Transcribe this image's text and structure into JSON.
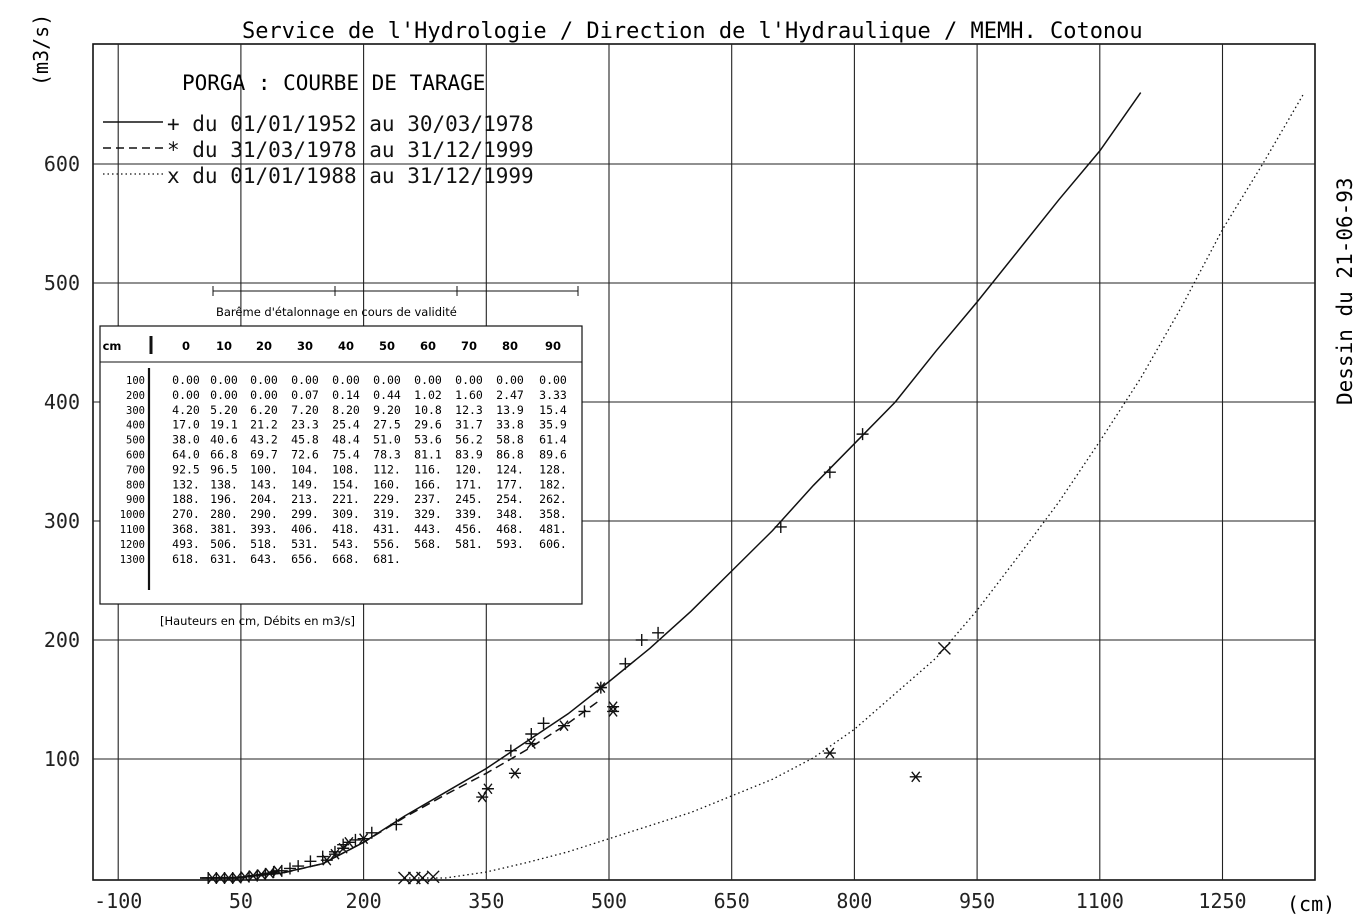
{
  "header": "Service de l'Hydrologie / Direction de l'Hydraulique / MEMH. Cotonou",
  "side_label": "Dessin du 21-06-93",
  "y_unit": "(m3/s)",
  "x_unit": "(cm)",
  "chart_data": {
    "type": "line",
    "title": "PORGA : COURBE DE TARAGE",
    "xlabel": "(cm)",
    "ylabel": "(m3/s)",
    "xlim": [
      -100,
      1400
    ],
    "ylim": [
      0,
      670
    ],
    "grid": true,
    "legend_position": "top-left",
    "x_ticks": [
      "-100",
      "50",
      "200",
      "350",
      "500",
      "650",
      "800",
      "950",
      "1100",
      "1250"
    ],
    "y_ticks": [
      "100",
      "200",
      "300",
      "400",
      "500",
      "600"
    ],
    "series": [
      {
        "name": "+ du 01/01/1952 au 30/03/1978",
        "style": "solid",
        "marker": "+",
        "line": [
          [
            0,
            0
          ],
          [
            50,
            0.5
          ],
          [
            100,
            4.2
          ],
          [
            150,
            12
          ],
          [
            200,
            30
          ],
          [
            250,
            52
          ],
          [
            300,
            72
          ],
          [
            350,
            92
          ],
          [
            400,
            115
          ],
          [
            450,
            138
          ],
          [
            500,
            165
          ],
          [
            550,
            193
          ],
          [
            600,
            224
          ],
          [
            650,
            258
          ],
          [
            700,
            292
          ],
          [
            750,
            330
          ],
          [
            800,
            365
          ],
          [
            850,
            400
          ],
          [
            900,
            443
          ],
          [
            950,
            484
          ],
          [
            1000,
            527
          ],
          [
            1050,
            570
          ],
          [
            1100,
            611
          ],
          [
            1150,
            660
          ]
        ],
        "points": [
          [
            10,
            0
          ],
          [
            20,
            0
          ],
          [
            30,
            0
          ],
          [
            40,
            0
          ],
          [
            50,
            0.5
          ],
          [
            60,
            1.2
          ],
          [
            70,
            2
          ],
          [
            80,
            3.5
          ],
          [
            90,
            5
          ],
          [
            100,
            6
          ],
          [
            110,
            8
          ],
          [
            120,
            10
          ],
          [
            135,
            14
          ],
          [
            150,
            18
          ],
          [
            165,
            22
          ],
          [
            175,
            28
          ],
          [
            190,
            32
          ],
          [
            210,
            38
          ],
          [
            240,
            45
          ],
          [
            380,
            107
          ],
          [
            405,
            121
          ],
          [
            420,
            130
          ],
          [
            470,
            140
          ],
          [
            490,
            160
          ],
          [
            520,
            180
          ],
          [
            540,
            200
          ],
          [
            560,
            206
          ],
          [
            710,
            295
          ],
          [
            770,
            341
          ],
          [
            810,
            373
          ]
        ]
      },
      {
        "name": "* du 31/03/1978 au 31/12/1999",
        "style": "dashed",
        "marker": "*",
        "line": [
          [
            0,
            0
          ],
          [
            50,
            0.5
          ],
          [
            100,
            4
          ],
          [
            150,
            12
          ],
          [
            200,
            30
          ],
          [
            250,
            51
          ],
          [
            300,
            70
          ],
          [
            350,
            88
          ],
          [
            400,
            108
          ],
          [
            450,
            130
          ],
          [
            490,
            150
          ]
        ],
        "points": [
          [
            15,
            0
          ],
          [
            25,
            0
          ],
          [
            35,
            0
          ],
          [
            45,
            0
          ],
          [
            55,
            1
          ],
          [
            65,
            2
          ],
          [
            75,
            3
          ],
          [
            85,
            4
          ],
          [
            95,
            6
          ],
          [
            155,
            15
          ],
          [
            165,
            20
          ],
          [
            175,
            25
          ],
          [
            182,
            30
          ],
          [
            200,
            33
          ],
          [
            345,
            68
          ],
          [
            352,
            75
          ],
          [
            385,
            88
          ],
          [
            405,
            113
          ],
          [
            445,
            128
          ],
          [
            490,
            160
          ],
          [
            505,
            140
          ],
          [
            505,
            144
          ],
          [
            770,
            105
          ],
          [
            875,
            85
          ]
        ]
      },
      {
        "name": "x du 01/01/1988 au 31/12/1999",
        "style": "dotted",
        "marker": "x",
        "line": [
          [
            250,
            0
          ],
          [
            300,
            0
          ],
          [
            350,
            5
          ],
          [
            400,
            13
          ],
          [
            450,
            22
          ],
          [
            500,
            33
          ],
          [
            550,
            44
          ],
          [
            600,
            55
          ],
          [
            650,
            69
          ],
          [
            700,
            83
          ],
          [
            750,
            101
          ],
          [
            800,
            125
          ],
          [
            850,
            155
          ],
          [
            900,
            185
          ],
          [
            950,
            225
          ],
          [
            1000,
            270
          ],
          [
            1050,
            316
          ],
          [
            1100,
            367
          ],
          [
            1150,
            420
          ],
          [
            1200,
            480
          ],
          [
            1250,
            545
          ],
          [
            1300,
            601
          ],
          [
            1350,
            660
          ]
        ],
        "points": [
          [
            250,
            0
          ],
          [
            262,
            0
          ],
          [
            272,
            0
          ],
          [
            285,
            1
          ],
          [
            910,
            193
          ]
        ]
      }
    ],
    "rating_table": {
      "title": "Barême d'étalonnage en cours de validité",
      "header": [
        "cm",
        "0",
        "10",
        "20",
        "30",
        "40",
        "50",
        "60",
        "70",
        "80",
        "90"
      ],
      "rows": [
        [
          "100",
          "0.00",
          "0.00",
          "0.00",
          "0.00",
          "0.00",
          "0.00",
          "0.00",
          "0.00",
          "0.00",
          "0.00"
        ],
        [
          "200",
          "0.00",
          "0.00",
          "0.00",
          "0.07",
          "0.14",
          "0.44",
          "1.02",
          "1.60",
          "2.47",
          "3.33"
        ],
        [
          "300",
          "4.20",
          "5.20",
          "6.20",
          "7.20",
          "8.20",
          "9.20",
          "10.8",
          "12.3",
          "13.9",
          "15.4"
        ],
        [
          "400",
          "17.0",
          "19.1",
          "21.2",
          "23.3",
          "25.4",
          "27.5",
          "29.6",
          "31.7",
          "33.8",
          "35.9"
        ],
        [
          "500",
          "38.0",
          "40.6",
          "43.2",
          "45.8",
          "48.4",
          "51.0",
          "53.6",
          "56.2",
          "58.8",
          "61.4"
        ],
        [
          "600",
          "64.0",
          "66.8",
          "69.7",
          "72.6",
          "75.4",
          "78.3",
          "81.1",
          "83.9",
          "86.8",
          "89.6"
        ],
        [
          "700",
          "92.5",
          "96.5",
          "100.",
          "104.",
          "108.",
          "112.",
          "116.",
          "120.",
          "124.",
          "128."
        ],
        [
          "800",
          "132.",
          "138.",
          "143.",
          "149.",
          "154.",
          "160.",
          "166.",
          "171.",
          "177.",
          "182."
        ],
        [
          "900",
          "188.",
          "196.",
          "204.",
          "213.",
          "221.",
          "229.",
          "237.",
          "245.",
          "254.",
          "262."
        ],
        [
          "1000",
          "270.",
          "280.",
          "290.",
          "299.",
          "309.",
          "319.",
          "329.",
          "339.",
          "348.",
          "358."
        ],
        [
          "1100",
          "368.",
          "381.",
          "393.",
          "406.",
          "418.",
          "431.",
          "443.",
          "456.",
          "468.",
          "481."
        ],
        [
          "1200",
          "493.",
          "506.",
          "518.",
          "531.",
          "543.",
          "556.",
          "568.",
          "581.",
          "593.",
          "606."
        ],
        [
          "1300",
          "618.",
          "631.",
          "643.",
          "656.",
          "668.",
          "681.",
          "",
          "",
          "",
          ""
        ]
      ],
      "footnote": "[Hauteurs en cm, Débits en m3/s]"
    }
  }
}
